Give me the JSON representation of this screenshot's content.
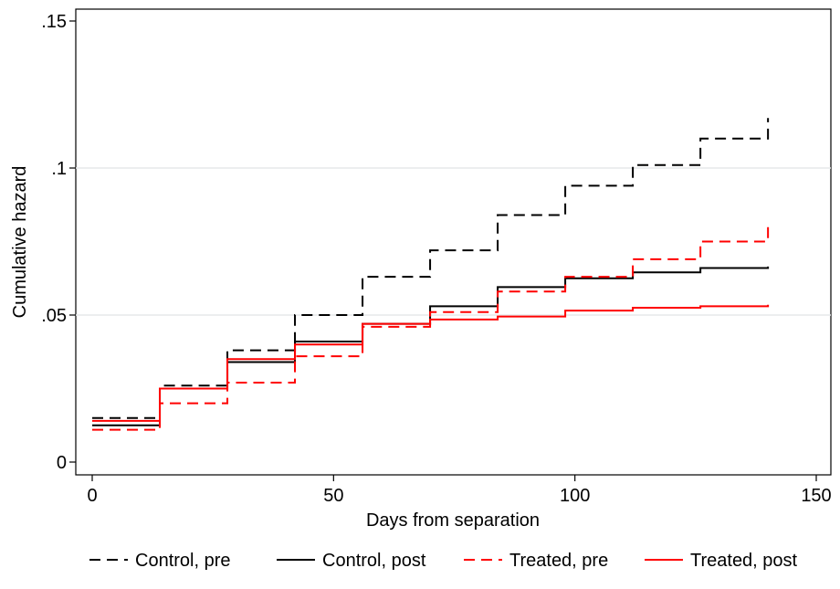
{
  "chart_data": {
    "type": "line",
    "line_shape": "step",
    "title": "",
    "xlabel": "Days from separation",
    "ylabel": "Cumulative hazard",
    "xlim": [
      0,
      150
    ],
    "ylim": [
      0,
      0.15
    ],
    "x_ticks": [
      0,
      50,
      100,
      150
    ],
    "x_tick_labels": [
      "0",
      "50",
      "100",
      "150"
    ],
    "y_ticks": [
      0,
      0.05,
      0.1,
      0.15
    ],
    "y_tick_labels": [
      "0",
      ".05",
      ".1",
      ".15"
    ],
    "grid": "horizontal",
    "legend_position": "bottom",
    "series": [
      {
        "name": "Control, pre",
        "color": "#000000",
        "dash": "dashed",
        "x": [
          0,
          14,
          28,
          42,
          56,
          70,
          84,
          98,
          112,
          126,
          140
        ],
        "y": [
          0.015,
          0.026,
          0.038,
          0.05,
          0.063,
          0.072,
          0.084,
          0.094,
          0.101,
          0.11,
          0.117
        ]
      },
      {
        "name": "Control, post",
        "color": "#000000",
        "dash": "solid",
        "x": [
          0,
          14,
          28,
          42,
          56,
          70,
          84,
          98,
          112,
          126,
          140
        ],
        "y": [
          0.0125,
          0.025,
          0.034,
          0.041,
          0.047,
          0.053,
          0.0595,
          0.0625,
          0.0645,
          0.066,
          0.0665
        ]
      },
      {
        "name": "Treated, pre",
        "color": "#ff0000",
        "dash": "dashed",
        "x": [
          0,
          14,
          28,
          42,
          56,
          70,
          84,
          98,
          112,
          126,
          140
        ],
        "y": [
          0.011,
          0.02,
          0.027,
          0.036,
          0.046,
          0.051,
          0.058,
          0.063,
          0.069,
          0.075,
          0.08
        ]
      },
      {
        "name": "Treated, post",
        "color": "#ff0000",
        "dash": "solid",
        "x": [
          0,
          14,
          28,
          42,
          56,
          70,
          84,
          98,
          112,
          126,
          140
        ],
        "y": [
          0.014,
          0.025,
          0.035,
          0.04,
          0.047,
          0.0485,
          0.0495,
          0.0515,
          0.0525,
          0.053,
          0.0535
        ]
      }
    ]
  }
}
